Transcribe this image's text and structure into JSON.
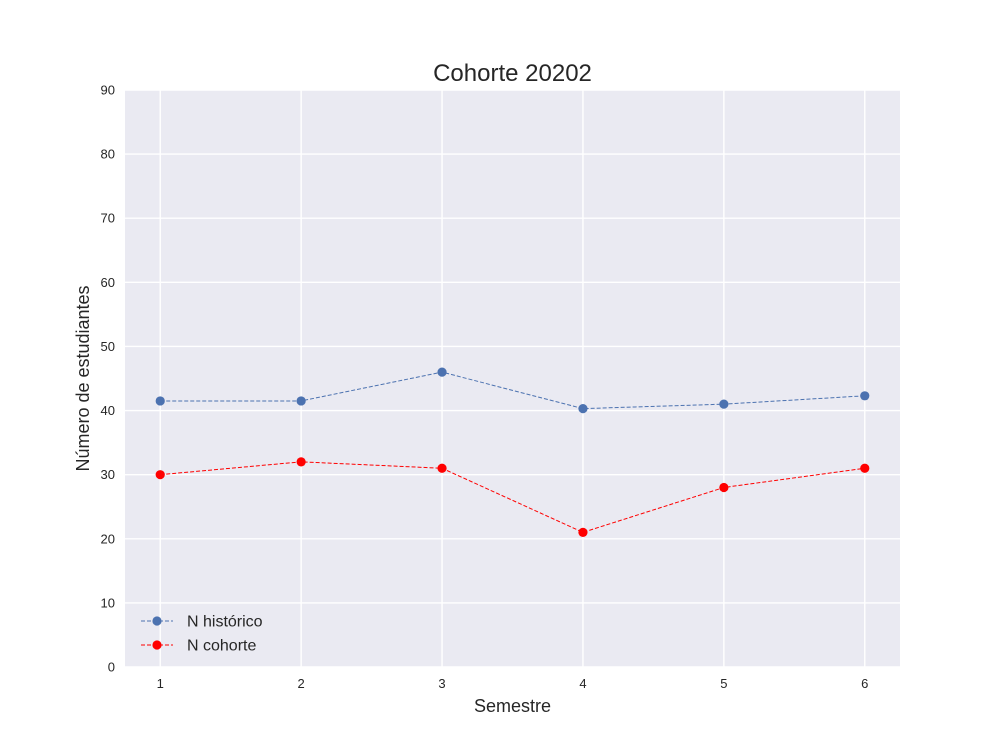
{
  "chart_data": {
    "type": "line",
    "title": "Cohorte 20202",
    "xlabel": "Semestre",
    "ylabel": "Número de estudiantes",
    "x": [
      1,
      2,
      3,
      4,
      5,
      6
    ],
    "xlim": [
      0.75,
      6.25
    ],
    "ylim": [
      0,
      90
    ],
    "yticks": [
      0,
      10,
      20,
      30,
      40,
      50,
      60,
      70,
      80,
      90
    ],
    "grid": true,
    "legend_position": "lower-left",
    "series": [
      {
        "name": "N histórico",
        "values": [
          41.5,
          41.5,
          46,
          40.3,
          41,
          42.3
        ],
        "color": "#4c72b0",
        "line_style": "dashed",
        "marker": "circle"
      },
      {
        "name": "N cohorte",
        "values": [
          30,
          32,
          31,
          21,
          28,
          31
        ],
        "color": "#ff0000",
        "line_style": "dashed",
        "marker": "circle"
      }
    ],
    "colors": {
      "plot_background": "#eaeaf2",
      "grid": "#ffffff",
      "text": "#262626"
    }
  }
}
